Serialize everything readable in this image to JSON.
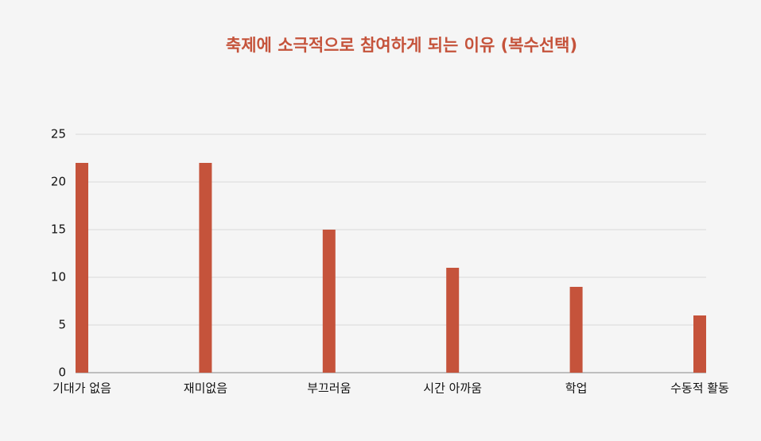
{
  "chart_data": {
    "type": "bar",
    "title": "축제에 소극적으로 참여하게 되는 이유 (복수선택)",
    "categories": [
      "기대가 없음",
      "재미없음",
      "부끄러움",
      "시간 아까움",
      "학업",
      "수동적 활동"
    ],
    "values": [
      22,
      22,
      15,
      11,
      9,
      6
    ],
    "color": "#c5533b",
    "ylim": [
      0,
      25
    ],
    "yticks": [
      0,
      5,
      10,
      15,
      20,
      25
    ],
    "grid": true
  }
}
